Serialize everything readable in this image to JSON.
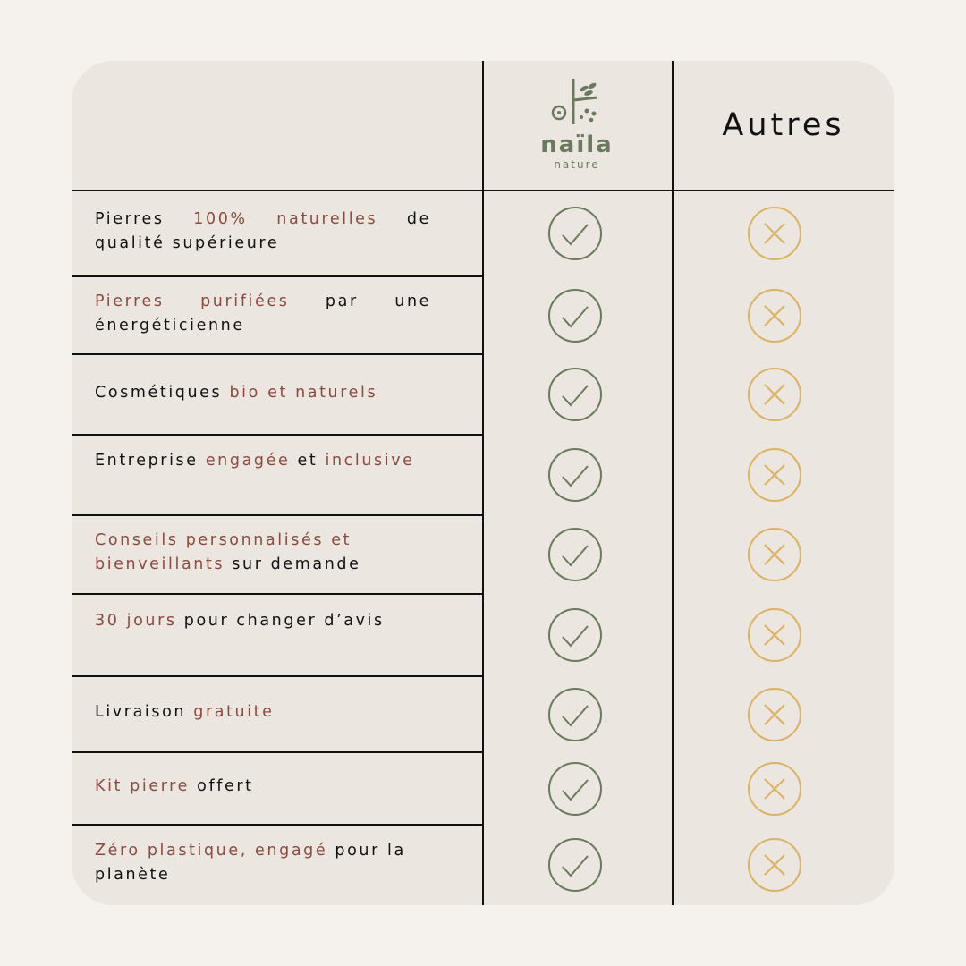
{
  "colors": {
    "background": "#f5f2ee",
    "card": "#ebe6e0",
    "highlight": "#8a4a3f",
    "check": "#6b7a5e",
    "cross": "#dcb264"
  },
  "header": {
    "brand_logo": "naïla nature",
    "brand_name": "naïla",
    "brand_sub": "nature",
    "others_label": "Autres"
  },
  "rows": [
    {
      "parts": [
        {
          "t": "Pierres ",
          "hl": false
        },
        {
          "t": "100% naturelles",
          "hl": true
        },
        {
          "t": " de qualité supérieure",
          "hl": false
        }
      ],
      "brand": "check-icon",
      "others": "cross-icon"
    },
    {
      "parts": [
        {
          "t": "Pierres purifiées",
          "hl": true
        },
        {
          "t": " par une énergéticienne",
          "hl": false
        }
      ],
      "brand": "check-icon",
      "others": "cross-icon"
    },
    {
      "parts": [
        {
          "t": "Cosmétiques ",
          "hl": false
        },
        {
          "t": "bio et naturels",
          "hl": true
        }
      ],
      "brand": "check-icon",
      "others": "cross-icon"
    },
    {
      "parts": [
        {
          "t": "Entreprise ",
          "hl": false
        },
        {
          "t": "engagée",
          "hl": true
        },
        {
          "t": " et ",
          "hl": false
        },
        {
          "t": "inclusive",
          "hl": true
        }
      ],
      "brand": "check-icon",
      "others": "cross-icon"
    },
    {
      "parts": [
        {
          "t": "Conseils personnalisés et bienveillants",
          "hl": true
        },
        {
          "t": " sur demande",
          "hl": false
        }
      ],
      "brand": "check-icon",
      "others": "cross-icon"
    },
    {
      "parts": [
        {
          "t": "30 jours",
          "hl": true
        },
        {
          "t": " pour changer d’avis",
          "hl": false
        }
      ],
      "brand": "check-icon",
      "others": "cross-icon"
    },
    {
      "parts": [
        {
          "t": "Livraison ",
          "hl": false
        },
        {
          "t": "gratuite",
          "hl": true
        }
      ],
      "brand": "check-icon",
      "others": "cross-icon"
    },
    {
      "parts": [
        {
          "t": "Kit pierre",
          "hl": true
        },
        {
          "t": " offert",
          "hl": false
        }
      ],
      "brand": "check-icon",
      "others": "cross-icon"
    },
    {
      "parts": [
        {
          "t": "Zéro plastique, engagé",
          "hl": true
        },
        {
          "t": " pour la planète",
          "hl": false
        }
      ],
      "brand": "check-icon",
      "others": "cross-icon"
    }
  ]
}
